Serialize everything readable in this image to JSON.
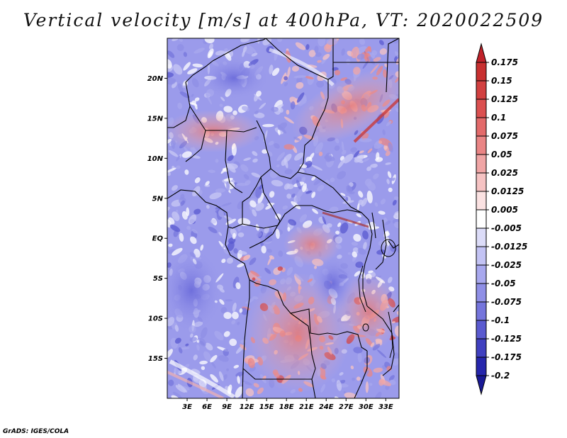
{
  "title": "Vertical velocity [m/s] at 400hPa, VT: 2020022509",
  "credit": "GrADS: IGES/COLA",
  "map": {
    "lon_range": [
      0,
      35
    ],
    "lat_range": [
      -20,
      25
    ],
    "lat_labels": [
      {
        "lat": 20,
        "text": "20N"
      },
      {
        "lat": 15,
        "text": "15N"
      },
      {
        "lat": 10,
        "text": "10N"
      },
      {
        "lat": 5,
        "text": "5N"
      },
      {
        "lat": 0,
        "text": "EQ"
      },
      {
        "lat": -5,
        "text": "5S"
      },
      {
        "lat": -10,
        "text": "10S"
      },
      {
        "lat": -15,
        "text": "15S"
      }
    ],
    "lon_labels": [
      {
        "lon": 3,
        "text": "3E"
      },
      {
        "lon": 6,
        "text": "6E"
      },
      {
        "lon": 9,
        "text": "9E"
      },
      {
        "lon": 12,
        "text": "12E"
      },
      {
        "lon": 15,
        "text": "15E"
      },
      {
        "lon": 18,
        "text": "18E"
      },
      {
        "lon": 21,
        "text": "21E"
      },
      {
        "lon": 24,
        "text": "24E"
      },
      {
        "lon": 27,
        "text": "27E"
      },
      {
        "lon": 30,
        "text": "30E"
      },
      {
        "lon": 33,
        "text": "33E"
      }
    ]
  },
  "colorbar": {
    "levels": [
      "0.175",
      "0.15",
      "0.125",
      "0.1",
      "0.075",
      "0.05",
      "0.025",
      "0.0125",
      "0.005",
      "-0.005",
      "-0.0125",
      "-0.025",
      "-0.05",
      "-0.075",
      "-0.1",
      "-0.125",
      "-0.175",
      "-0.2"
    ],
    "colors": [
      "#c0222a",
      "#c83030",
      "#d24040",
      "#db5050",
      "#e36a6a",
      "#ea8585",
      "#f0a5a5",
      "#f6c3c3",
      "#fbe2e2",
      "#ffffff",
      "#dcdcf8",
      "#c3c3f4",
      "#a8a8ee",
      "#8f8fe6",
      "#7575dc",
      "#5a5ad0",
      "#4040c0",
      "#2626ac",
      "#1a1a96"
    ]
  }
}
